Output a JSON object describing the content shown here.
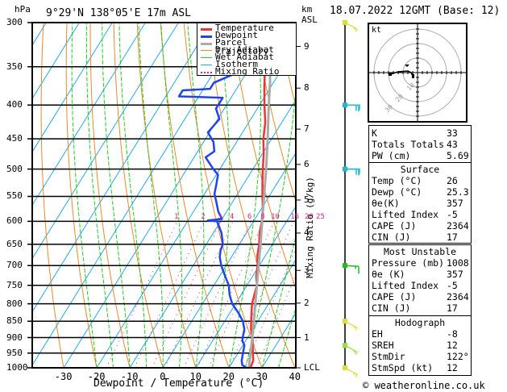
{
  "header": {
    "location": "9°29'N 138°05'E 17m ASL",
    "datetime": "18.07.2022 12GMT (Base: 12)",
    "y_unit_left": "hPa",
    "y_unit_right_1": "km",
    "y_unit_right_2": "ASL"
  },
  "chart_data": {
    "type": "line",
    "title": "9°29'N 138°05'E 17m ASL",
    "xlabel": "Dewpoint / Temperature (°C)",
    "ylabel": "hPa",
    "ylabel_right": "Mixing Ratio (g/kg)",
    "xlim": [
      -40,
      40
    ],
    "ylim": [
      1000,
      300
    ],
    "x_ticks": [
      -30,
      -20,
      -10,
      0,
      10,
      20,
      30,
      40
    ],
    "pressure_ticks": [
      300,
      350,
      400,
      450,
      500,
      550,
      600,
      650,
      700,
      750,
      800,
      850,
      900,
      950,
      1000
    ],
    "km_ticks": [
      {
        "label": "9",
        "p": 326
      },
      {
        "label": "8",
        "p": 377
      },
      {
        "label": "7",
        "p": 435
      },
      {
        "label": "6",
        "p": 492
      },
      {
        "label": "5",
        "p": 557
      },
      {
        "label": "4",
        "p": 625
      },
      {
        "label": "3",
        "p": 712
      },
      {
        "label": "2",
        "p": 798
      },
      {
        "label": "1",
        "p": 900
      },
      {
        "label": "LCL",
        "p": 1000
      }
    ],
    "mixing_ratio_labels": [
      "1",
      "2",
      "3",
      "4",
      "6",
      "8",
      "10",
      "15",
      "20",
      "25"
    ],
    "legend": {
      "placement": "top-right",
      "entries": [
        "Temperature",
        "Dewpoint",
        "Parcel Trajectory",
        "Dry Adiabat",
        "Wet Adiabat",
        "Isotherm",
        "Mixing Ratio"
      ]
    },
    "series": [
      {
        "name": "Temperature",
        "color": "#ee3333",
        "points": [
          [
            1000,
            26.5
          ],
          [
            975,
            26.0
          ],
          [
            950,
            24.5
          ],
          [
            925,
            23.0
          ],
          [
            900,
            21.5
          ],
          [
            875,
            19.5
          ],
          [
            850,
            18.0
          ],
          [
            825,
            16.5
          ],
          [
            800,
            15.0
          ],
          [
            775,
            14.0
          ],
          [
            750,
            13.0
          ],
          [
            725,
            11.0
          ],
          [
            700,
            9.5
          ],
          [
            675,
            7.5
          ],
          [
            650,
            6.0
          ],
          [
            625,
            4.0
          ],
          [
            600,
            2.5
          ],
          [
            575,
            0.5
          ],
          [
            550,
            -2.0
          ],
          [
            525,
            -4.5
          ],
          [
            500,
            -7.0
          ],
          [
            475,
            -9.5
          ],
          [
            450,
            -12.5
          ],
          [
            425,
            -15.0
          ],
          [
            400,
            -18.5
          ],
          [
            375,
            -22.0
          ],
          [
            350,
            -25.5
          ],
          [
            325,
            -29.5
          ],
          [
            310,
            -32.5
          ],
          [
            300,
            -34.5
          ]
        ]
      },
      {
        "name": "Dewpoint",
        "color": "#2244ee",
        "points": [
          [
            1000,
            25.3
          ],
          [
            990,
            23.5
          ],
          [
            975,
            22.5
          ],
          [
            950,
            21.5
          ],
          [
            925,
            20.5
          ],
          [
            910,
            19.0
          ],
          [
            900,
            18.5
          ],
          [
            875,
            17.5
          ],
          [
            850,
            15.5
          ],
          [
            825,
            12.5
          ],
          [
            800,
            9.0
          ],
          [
            775,
            6.5
          ],
          [
            750,
            4.5
          ],
          [
            725,
            1.5
          ],
          [
            700,
            -1.5
          ],
          [
            680,
            -3.5
          ],
          [
            665,
            -4.5
          ],
          [
            650,
            -5.0
          ],
          [
            625,
            -7.5
          ],
          [
            600,
            -11.0
          ],
          [
            598,
            -14.0
          ],
          [
            595,
            -10.0
          ],
          [
            580,
            -12.5
          ],
          [
            560,
            -15.0
          ],
          [
            545,
            -17.0
          ],
          [
            530,
            -18.0
          ],
          [
            510,
            -19.5
          ],
          [
            500,
            -22.0
          ],
          [
            480,
            -26.5
          ],
          [
            470,
            -25.0
          ],
          [
            455,
            -27.0
          ],
          [
            440,
            -30.5
          ],
          [
            420,
            -29.5
          ],
          [
            405,
            -32.5
          ],
          [
            390,
            -32.5
          ],
          [
            388,
            -46.0
          ],
          [
            380,
            -46.0
          ],
          [
            378,
            -38.0
          ],
          [
            370,
            -38.0
          ],
          [
            360,
            -34.0
          ],
          [
            350,
            -36.0
          ],
          [
            345,
            -44.0
          ],
          [
            335,
            -40.0
          ],
          [
            318,
            -43.0
          ],
          [
            305,
            -44.0
          ],
          [
            300,
            -46.0
          ]
        ]
      },
      {
        "name": "Parcel Trajectory",
        "color": "#aaaaaa",
        "points": [
          [
            1000,
            26.0
          ],
          [
            950,
            23.8
          ],
          [
            900,
            21.4
          ],
          [
            850,
            18.8
          ],
          [
            800,
            16.0
          ],
          [
            750,
            13.0
          ],
          [
            700,
            9.8
          ],
          [
            650,
            6.4
          ],
          [
            600,
            2.6
          ],
          [
            550,
            -1.5
          ],
          [
            500,
            -6.0
          ],
          [
            450,
            -11.2
          ],
          [
            400,
            -17.2
          ],
          [
            370,
            -21.0
          ],
          [
            350,
            -24.0
          ]
        ]
      }
    ]
  },
  "hodograph": {
    "unit_label": "kt",
    "ring_labels": [
      "10",
      "20",
      "30"
    ]
  },
  "wind_barbs": [
    {
      "p": 300,
      "color": "#dddd33"
    },
    {
      "p": 400,
      "color": "#22bbcc"
    },
    {
      "p": 500,
      "color": "#22bbcc"
    },
    {
      "p": 700,
      "color": "#22bb22"
    },
    {
      "p": 850,
      "color": "#dddd33"
    },
    {
      "p": 925,
      "color": "#99dd44"
    },
    {
      "p": 1000,
      "color": "#dddd33"
    }
  ],
  "indices": {
    "rows": [
      {
        "label": "K",
        "value": "33"
      },
      {
        "label": "Totals Totals",
        "value": "43"
      },
      {
        "label": "PW (cm)",
        "value": "5.69"
      }
    ]
  },
  "surface": {
    "title": "Surface",
    "rows": [
      {
        "label": "Temp (°C)",
        "value": "26"
      },
      {
        "label": "Dewp (°C)",
        "value": "25.3"
      },
      {
        "label": "θe(K)",
        "value": "357"
      },
      {
        "label": "Lifted Index",
        "value": "-5"
      },
      {
        "label": "CAPE (J)",
        "value": "2364"
      },
      {
        "label": "CIN (J)",
        "value": "17"
      }
    ]
  },
  "most_unstable": {
    "title": "Most Unstable",
    "rows": [
      {
        "label": "Pressure (mb)",
        "value": "1008"
      },
      {
        "label": "θe (K)",
        "value": "357"
      },
      {
        "label": "Lifted Index",
        "value": "-5"
      },
      {
        "label": "CAPE (J)",
        "value": "2364"
      },
      {
        "label": "CIN (J)",
        "value": "17"
      }
    ]
  },
  "hodograph_stats": {
    "title": "Hodograph",
    "rows": [
      {
        "label": "EH",
        "value": "-8"
      },
      {
        "label": "SREH",
        "value": "12"
      },
      {
        "label": "StmDir",
        "value": "122°"
      },
      {
        "label": "StmSpd (kt)",
        "value": "12"
      }
    ]
  },
  "footer": {
    "copyright": "© weatheronline.co.uk"
  }
}
